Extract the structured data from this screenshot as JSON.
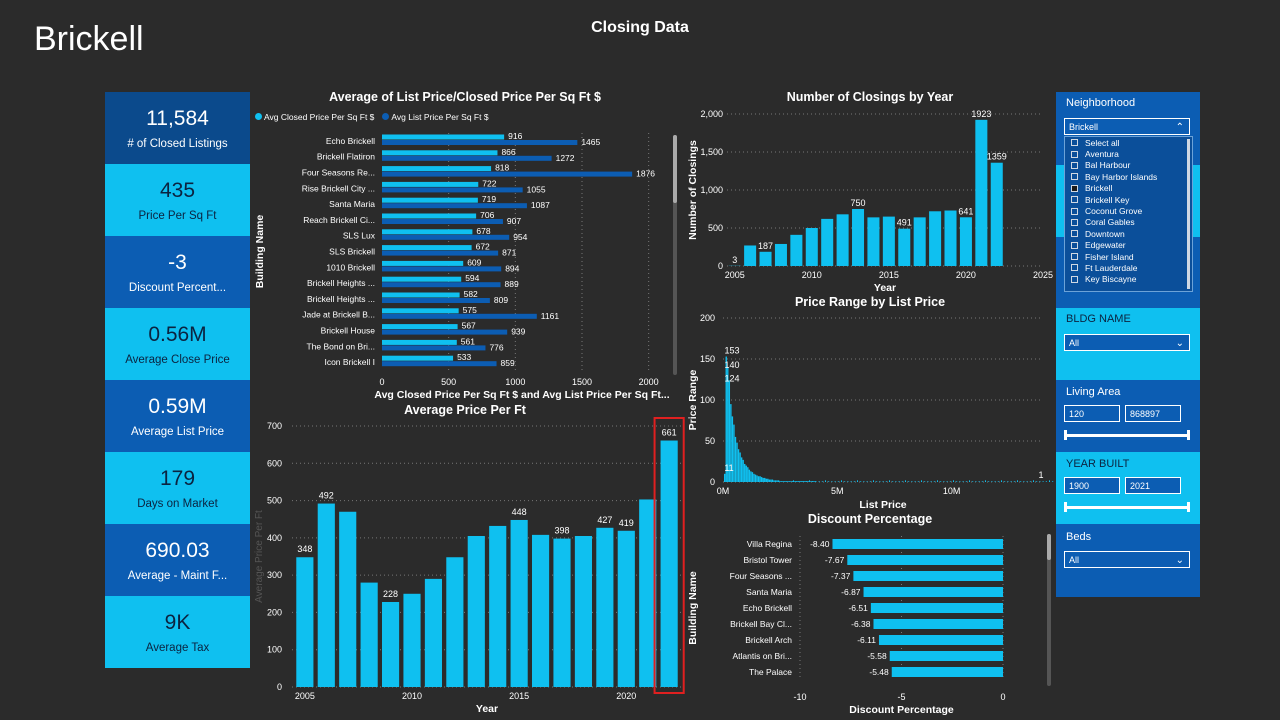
{
  "page_title": "Brickell",
  "report_title": "Closing Data",
  "kpis": [
    {
      "value": "11,584",
      "label": "# of Closed Listings"
    },
    {
      "value": "435",
      "label": "Price Per Sq Ft"
    },
    {
      "value": "-3",
      "label": "Discount Percent..."
    },
    {
      "value": "0.56M",
      "label": "Average Close Price"
    },
    {
      "value": "0.59M",
      "label": "Average List Price"
    },
    {
      "value": "179",
      "label": "Days on Market"
    },
    {
      "value": "690.03",
      "label": "Average - Maint F..."
    },
    {
      "value": "9K",
      "label": "Average Tax"
    }
  ],
  "slicers": {
    "neighborhood": {
      "title": "Neighborhood",
      "selected": "Brickell",
      "options": [
        "Select all",
        "Aventura",
        "Bal Harbour",
        "Bay Harbor Islands",
        "Brickell",
        "Brickell Key",
        "Coconut Grove",
        "Coral Gables",
        "Downtown",
        "Edgewater",
        "Fisher Island",
        "Ft Lauderdale",
        "Key Biscayne"
      ],
      "checked": "Brickell"
    },
    "bldg_name": {
      "title": "BLDG NAME",
      "selected": "All"
    },
    "living_area": {
      "title": "Living Area",
      "min": "120",
      "max": "868897"
    },
    "year_built": {
      "title": "YEAR BUILT",
      "min": "1900",
      "max": "2021"
    },
    "beds": {
      "title": "Beds",
      "selected": "All"
    }
  },
  "colors": {
    "light": "#0fc0f0",
    "dark": "#0c5db3",
    "highlight": "#e02020"
  },
  "chart_data": [
    {
      "id": "list_vs_closed",
      "type": "bar",
      "orientation": "horizontal",
      "title": "Average of List Price/Closed Price Per Sq Ft $",
      "xlabel": "Avg Closed Price Per Sq Ft $ and Avg List Price Per Sq Ft...",
      "ylabel": "Building Name",
      "xticks": [
        "0",
        "500",
        "1000",
        "1500",
        "2000"
      ],
      "xlim": [
        0,
        2100
      ],
      "categories": [
        "Echo Brickell",
        "Brickell Flatiron",
        "Four Seasons Re...",
        "Rise Brickell City ...",
        "Santa Maria",
        "Reach Brickell Ci...",
        "SLS Lux",
        "SLS Brickell",
        "1010 Brickell",
        "Brickell Heights ...",
        "Brickell Heights ...",
        "Jade at Brickell B...",
        "Brickell House",
        "The Bond on Bri...",
        "Icon Brickell I"
      ],
      "series": [
        {
          "name": "Avg Closed Price Per Sq Ft $",
          "values": [
            916,
            866,
            818,
            722,
            719,
            706,
            678,
            672,
            609,
            594,
            582,
            575,
            567,
            561,
            533
          ]
        },
        {
          "name": "Avg List Price Per Sq Ft $",
          "values": [
            1465,
            1272,
            1876,
            1055,
            1087,
            907,
            954,
            871,
            894,
            889,
            809,
            1161,
            939,
            776,
            859
          ]
        }
      ]
    },
    {
      "id": "closings_by_year",
      "type": "bar",
      "title": "Number of Closings by Year",
      "xlabel": "Year",
      "ylabel": "Number of Closings",
      "xticks": [
        "2005",
        "2010",
        "2015",
        "2020",
        "2025"
      ],
      "yticks": [
        "0",
        "500",
        "1,000",
        "1,500",
        "2,000"
      ],
      "ylim": [
        0,
        2000
      ],
      "x": [
        2005,
        2006,
        2007,
        2008,
        2009,
        2010,
        2011,
        2012,
        2013,
        2014,
        2015,
        2016,
        2017,
        2018,
        2019,
        2020,
        2021,
        2022
      ],
      "values": [
        3,
        270,
        187,
        290,
        410,
        500,
        620,
        680,
        750,
        640,
        650,
        491,
        640,
        720,
        730,
        641,
        1923,
        1359
      ],
      "labeled": [
        "3",
        "",
        "187",
        "",
        "",
        "",
        "",
        "",
        "750",
        "",
        "",
        "491",
        "",
        "",
        "",
        "641",
        "1923",
        "1359"
      ]
    },
    {
      "id": "price_range",
      "type": "bar",
      "title": "Price Range by List Price",
      "xlabel": "List Price",
      "ylabel": "Price Range",
      "xticks": [
        "0M",
        "5M",
        "10M"
      ],
      "yticks": [
        "0",
        "50",
        "100",
        "150",
        "200"
      ],
      "ylim": [
        0,
        200
      ],
      "labels": [
        {
          "text": "153"
        },
        {
          "text": "140"
        },
        {
          "text": "124"
        },
        {
          "text": "11"
        },
        {
          "text": "1"
        }
      ]
    },
    {
      "id": "avg_price_per_ft",
      "type": "bar",
      "title": "Average Price Per Ft",
      "xlabel": "Year",
      "ylabel": "Average Price Per Ft",
      "xticks": [
        "2005",
        "2010",
        "2015",
        "2020"
      ],
      "yticks": [
        "0",
        "100",
        "200",
        "300",
        "400",
        "500",
        "600",
        "700"
      ],
      "ylim": [
        0,
        700
      ],
      "x": [
        2005,
        2006,
        2007,
        2008,
        2009,
        2010,
        2011,
        2012,
        2013,
        2014,
        2015,
        2016,
        2017,
        2018,
        2019,
        2020,
        2021,
        2022
      ],
      "values": [
        348,
        492,
        470,
        280,
        228,
        250,
        290,
        348,
        405,
        432,
        448,
        408,
        398,
        405,
        427,
        419,
        503,
        661
      ],
      "labeled": [
        "348",
        "492",
        "",
        "",
        "228",
        "",
        "",
        "",
        "",
        "",
        "448",
        "",
        "398",
        "",
        "427",
        "419",
        "",
        "661"
      ],
      "highlight_index": 17
    },
    {
      "id": "discount_pct",
      "type": "bar",
      "orientation": "horizontal",
      "title": "Discount Percentage",
      "xlabel": "Discount Percentage",
      "ylabel": "Building Name",
      "xticks": [
        "-10",
        "-5",
        "0"
      ],
      "xlim": [
        -10,
        0
      ],
      "categories": [
        "Villa Regina",
        "Bristol Tower",
        "Four Seasons ...",
        "Santa Maria",
        "Echo Brickell",
        "Brickell Bay Cl...",
        "Brickell Arch",
        "Atlantis on Bri...",
        "The Palace"
      ],
      "values": [
        -8.4,
        -7.67,
        -7.37,
        -6.87,
        -6.51,
        -6.38,
        -6.11,
        -5.58,
        -5.48
      ]
    }
  ]
}
